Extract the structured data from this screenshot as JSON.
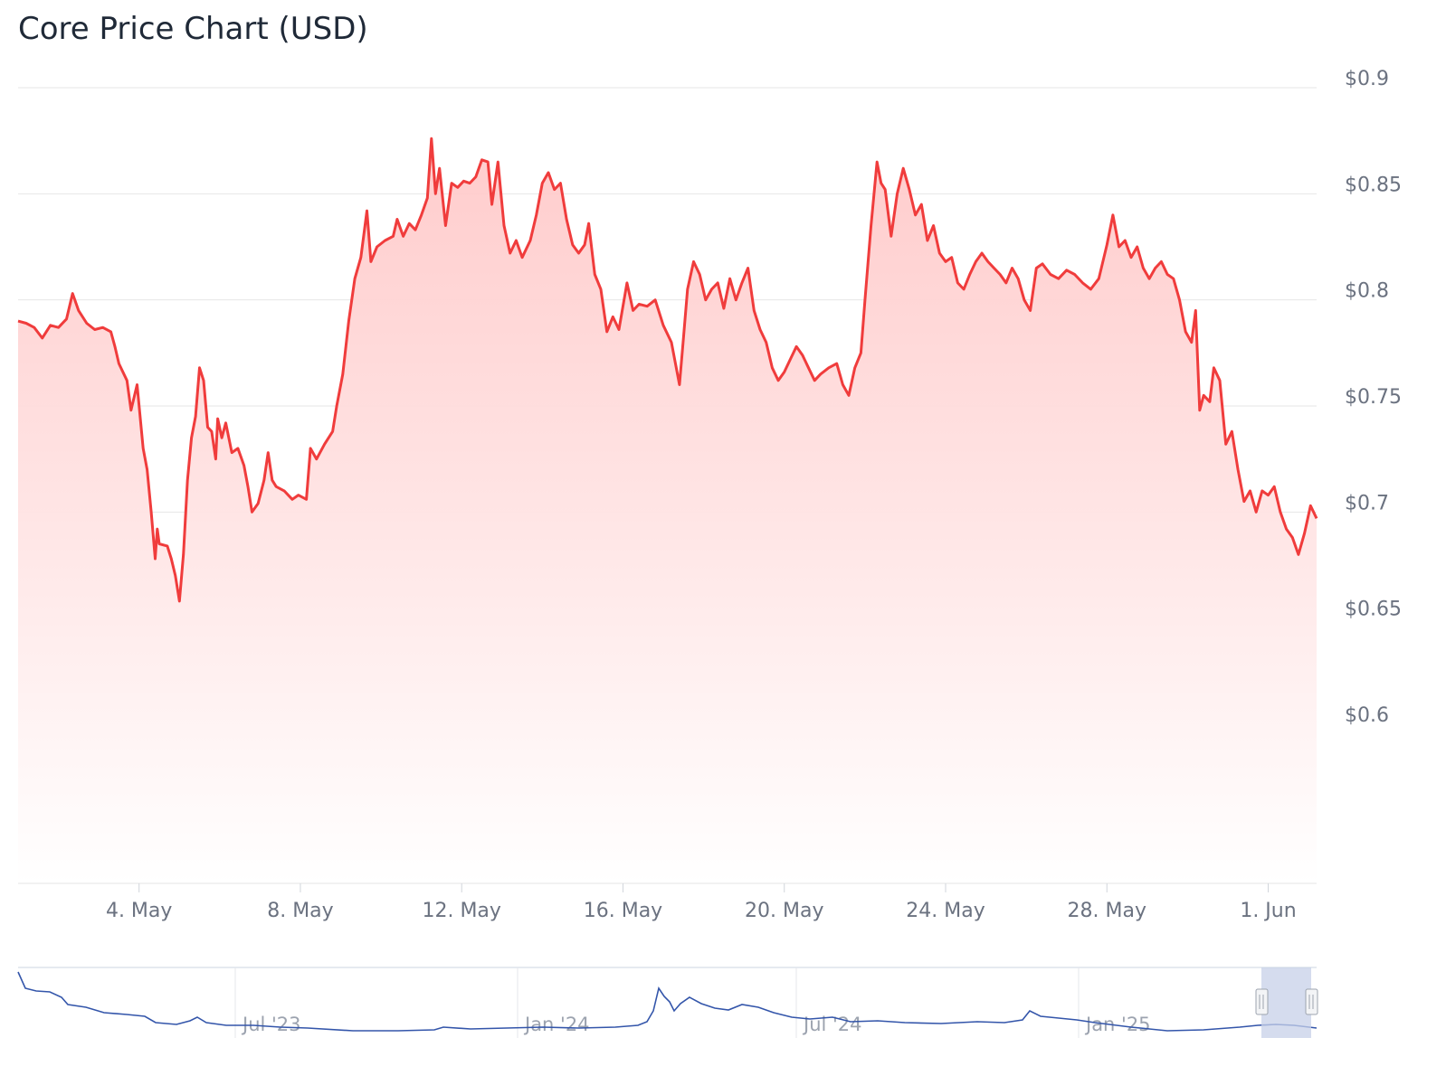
{
  "title": "Core Price Chart (USD)",
  "colors": {
    "line": "#f03c3c",
    "area_top": "#ffc9c9",
    "grid": "#e6e6e6",
    "navigator_line": "#3355aa",
    "navigator_mask": "#c7d0e8"
  },
  "chart_data": {
    "type": "area",
    "y_axis": {
      "position": "right",
      "ylim": [
        0.6,
        0.9
      ],
      "ticks": [
        0.6,
        0.65,
        0.7,
        0.75,
        0.8,
        0.85,
        0.9
      ],
      "tick_labels": [
        "$0.6",
        "$0.65",
        "$0.7",
        "$0.75",
        "$0.8",
        "$0.85",
        "$0.9"
      ]
    },
    "x_axis": {
      "range_days": [
        0.6,
        32.8
      ],
      "ticks": [
        {
          "day": 3.6,
          "label": "4. May"
        },
        {
          "day": 7.6,
          "label": "8. May"
        },
        {
          "day": 11.6,
          "label": "12. May"
        },
        {
          "day": 15.6,
          "label": "16. May"
        },
        {
          "day": 19.6,
          "label": "20. May"
        },
        {
          "day": 23.6,
          "label": "24. May"
        },
        {
          "day": 27.6,
          "label": "28. May"
        },
        {
          "day": 31.6,
          "label": "1. Jun"
        }
      ]
    },
    "grid": true,
    "legend": "none",
    "series": [
      {
        "values": [
          [
            0.6,
            0.79
          ],
          [
            0.8,
            0.789
          ],
          [
            1.0,
            0.787
          ],
          [
            1.2,
            0.782
          ],
          [
            1.4,
            0.788
          ],
          [
            1.6,
            0.787
          ],
          [
            1.8,
            0.791
          ],
          [
            1.95,
            0.803
          ],
          [
            2.1,
            0.795
          ],
          [
            2.3,
            0.789
          ],
          [
            2.5,
            0.786
          ],
          [
            2.7,
            0.787
          ],
          [
            2.9,
            0.785
          ],
          [
            3.0,
            0.778
          ],
          [
            3.1,
            0.77
          ],
          [
            3.3,
            0.762
          ],
          [
            3.4,
            0.748
          ],
          [
            3.55,
            0.76
          ],
          [
            3.7,
            0.73
          ],
          [
            3.8,
            0.72
          ],
          [
            3.9,
            0.7
          ],
          [
            4.0,
            0.678
          ],
          [
            4.05,
            0.692
          ],
          [
            4.1,
            0.685
          ],
          [
            4.3,
            0.684
          ],
          [
            4.4,
            0.678
          ],
          [
            4.5,
            0.67
          ],
          [
            4.6,
            0.658
          ],
          [
            4.7,
            0.68
          ],
          [
            4.8,
            0.715
          ],
          [
            4.9,
            0.735
          ],
          [
            5.0,
            0.745
          ],
          [
            5.1,
            0.768
          ],
          [
            5.2,
            0.762
          ],
          [
            5.3,
            0.74
          ],
          [
            5.4,
            0.738
          ],
          [
            5.5,
            0.725
          ],
          [
            5.55,
            0.744
          ],
          [
            5.65,
            0.735
          ],
          [
            5.75,
            0.742
          ],
          [
            5.9,
            0.728
          ],
          [
            6.05,
            0.73
          ],
          [
            6.2,
            0.722
          ],
          [
            6.3,
            0.712
          ],
          [
            6.4,
            0.7
          ],
          [
            6.55,
            0.704
          ],
          [
            6.7,
            0.715
          ],
          [
            6.8,
            0.728
          ],
          [
            6.9,
            0.715
          ],
          [
            7.0,
            0.712
          ],
          [
            7.2,
            0.71
          ],
          [
            7.4,
            0.706
          ],
          [
            7.55,
            0.708
          ],
          [
            7.75,
            0.706
          ],
          [
            7.85,
            0.73
          ],
          [
            8.0,
            0.725
          ],
          [
            8.2,
            0.732
          ],
          [
            8.4,
            0.738
          ],
          [
            8.5,
            0.75
          ],
          [
            8.65,
            0.765
          ],
          [
            8.8,
            0.79
          ],
          [
            8.95,
            0.81
          ],
          [
            9.1,
            0.82
          ],
          [
            9.25,
            0.842
          ],
          [
            9.35,
            0.818
          ],
          [
            9.5,
            0.825
          ],
          [
            9.7,
            0.828
          ],
          [
            9.9,
            0.83
          ],
          [
            10.0,
            0.838
          ],
          [
            10.15,
            0.83
          ],
          [
            10.3,
            0.836
          ],
          [
            10.45,
            0.833
          ],
          [
            10.6,
            0.84
          ],
          [
            10.75,
            0.848
          ],
          [
            10.85,
            0.876
          ],
          [
            10.95,
            0.85
          ],
          [
            11.05,
            0.862
          ],
          [
            11.2,
            0.835
          ],
          [
            11.35,
            0.855
          ],
          [
            11.5,
            0.853
          ],
          [
            11.65,
            0.856
          ],
          [
            11.8,
            0.855
          ],
          [
            11.95,
            0.858
          ],
          [
            12.1,
            0.866
          ],
          [
            12.25,
            0.865
          ],
          [
            12.35,
            0.845
          ],
          [
            12.5,
            0.865
          ],
          [
            12.65,
            0.835
          ],
          [
            12.8,
            0.822
          ],
          [
            12.95,
            0.828
          ],
          [
            13.1,
            0.82
          ],
          [
            13.3,
            0.828
          ],
          [
            13.45,
            0.84
          ],
          [
            13.6,
            0.855
          ],
          [
            13.75,
            0.86
          ],
          [
            13.9,
            0.852
          ],
          [
            14.05,
            0.855
          ],
          [
            14.2,
            0.838
          ],
          [
            14.35,
            0.826
          ],
          [
            14.5,
            0.822
          ],
          [
            14.65,
            0.826
          ],
          [
            14.75,
            0.836
          ],
          [
            14.9,
            0.812
          ],
          [
            15.05,
            0.805
          ],
          [
            15.2,
            0.785
          ],
          [
            15.35,
            0.792
          ],
          [
            15.5,
            0.786
          ],
          [
            15.7,
            0.808
          ],
          [
            15.85,
            0.795
          ],
          [
            16.0,
            0.798
          ],
          [
            16.2,
            0.797
          ],
          [
            16.4,
            0.8
          ],
          [
            16.6,
            0.788
          ],
          [
            16.8,
            0.78
          ],
          [
            17.0,
            0.76
          ],
          [
            17.1,
            0.782
          ],
          [
            17.2,
            0.805
          ],
          [
            17.35,
            0.818
          ],
          [
            17.5,
            0.812
          ],
          [
            17.65,
            0.8
          ],
          [
            17.8,
            0.805
          ],
          [
            17.95,
            0.808
          ],
          [
            18.1,
            0.796
          ],
          [
            18.25,
            0.81
          ],
          [
            18.4,
            0.8
          ],
          [
            18.55,
            0.808
          ],
          [
            18.7,
            0.815
          ],
          [
            18.85,
            0.795
          ],
          [
            19.0,
            0.786
          ],
          [
            19.15,
            0.78
          ],
          [
            19.3,
            0.768
          ],
          [
            19.45,
            0.762
          ],
          [
            19.6,
            0.766
          ],
          [
            19.75,
            0.772
          ],
          [
            19.9,
            0.778
          ],
          [
            20.05,
            0.774
          ],
          [
            20.2,
            0.768
          ],
          [
            20.35,
            0.762
          ],
          [
            20.5,
            0.765
          ],
          [
            20.7,
            0.768
          ],
          [
            20.9,
            0.77
          ],
          [
            21.05,
            0.76
          ],
          [
            21.2,
            0.755
          ],
          [
            21.35,
            0.768
          ],
          [
            21.5,
            0.775
          ],
          [
            21.6,
            0.8
          ],
          [
            21.75,
            0.835
          ],
          [
            21.9,
            0.865
          ],
          [
            22.0,
            0.855
          ],
          [
            22.1,
            0.852
          ],
          [
            22.25,
            0.83
          ],
          [
            22.4,
            0.85
          ],
          [
            22.55,
            0.862
          ],
          [
            22.7,
            0.852
          ],
          [
            22.85,
            0.84
          ],
          [
            23.0,
            0.845
          ],
          [
            23.15,
            0.828
          ],
          [
            23.3,
            0.835
          ],
          [
            23.45,
            0.822
          ],
          [
            23.6,
            0.818
          ],
          [
            23.75,
            0.82
          ],
          [
            23.9,
            0.808
          ],
          [
            24.05,
            0.805
          ],
          [
            24.2,
            0.812
          ],
          [
            24.35,
            0.818
          ],
          [
            24.5,
            0.822
          ],
          [
            24.65,
            0.818
          ],
          [
            24.8,
            0.815
          ],
          [
            24.95,
            0.812
          ],
          [
            25.1,
            0.808
          ],
          [
            25.25,
            0.815
          ],
          [
            25.4,
            0.81
          ],
          [
            25.55,
            0.8
          ],
          [
            25.7,
            0.795
          ],
          [
            25.85,
            0.815
          ],
          [
            26.0,
            0.817
          ],
          [
            26.2,
            0.812
          ],
          [
            26.4,
            0.81
          ],
          [
            26.6,
            0.814
          ],
          [
            26.8,
            0.812
          ],
          [
            27.0,
            0.808
          ],
          [
            27.2,
            0.805
          ],
          [
            27.4,
            0.81
          ],
          [
            27.6,
            0.826
          ],
          [
            27.75,
            0.84
          ],
          [
            27.9,
            0.825
          ],
          [
            28.05,
            0.828
          ],
          [
            28.2,
            0.82
          ],
          [
            28.35,
            0.825
          ],
          [
            28.5,
            0.815
          ],
          [
            28.65,
            0.81
          ],
          [
            28.8,
            0.815
          ],
          [
            28.95,
            0.818
          ],
          [
            29.1,
            0.812
          ],
          [
            29.25,
            0.81
          ],
          [
            29.4,
            0.8
          ],
          [
            29.55,
            0.785
          ],
          [
            29.7,
            0.78
          ],
          [
            29.8,
            0.795
          ],
          [
            29.9,
            0.748
          ],
          [
            30.0,
            0.755
          ],
          [
            30.15,
            0.752
          ],
          [
            30.25,
            0.768
          ],
          [
            30.4,
            0.762
          ],
          [
            30.55,
            0.732
          ],
          [
            30.7,
            0.738
          ],
          [
            30.85,
            0.72
          ],
          [
            31.0,
            0.705
          ],
          [
            31.15,
            0.71
          ],
          [
            31.3,
            0.7
          ],
          [
            31.45,
            0.71
          ],
          [
            31.6,
            0.708
          ],
          [
            31.75,
            0.712
          ],
          [
            31.9,
            0.7
          ],
          [
            32.05,
            0.692
          ],
          [
            32.2,
            0.688
          ],
          [
            32.35,
            0.68
          ],
          [
            32.5,
            0.69
          ],
          [
            32.65,
            0.703
          ],
          [
            32.8,
            0.697
          ]
        ]
      }
    ],
    "navigator": {
      "x_ticks": [
        "Jul '23",
        "Jan '24",
        "Jul '24",
        "Jan '25"
      ]
    }
  }
}
